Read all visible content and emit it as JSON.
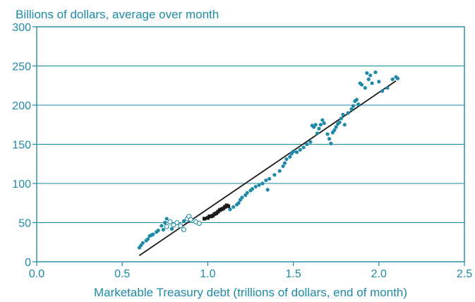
{
  "chart_data": {
    "type": "scatter",
    "title": "Billions of dollars, average over month",
    "xlabel": "Marketable Treasury debt (trillions of dollars, end of month)",
    "ylabel": "",
    "xlim": [
      0,
      2.5
    ],
    "ylim": [
      0,
      300
    ],
    "x_ticks": [
      "0.0",
      "0.5",
      "1.0",
      "1.5",
      "2.0",
      "2.5"
    ],
    "y_ticks": [
      "0",
      "50",
      "100",
      "150",
      "200",
      "250",
      "300"
    ],
    "grid": "horizontal",
    "colors": {
      "text": "#1e8aa6",
      "axis": "#1e8aa6",
      "grid": "#1e8aa6",
      "series_teal": "#1e8aa6",
      "series_black": "#1a1a1a",
      "fit_line": "#1a1a1a"
    },
    "series": [
      {
        "marker": "filled-circle",
        "color": "#1e8aa6",
        "points": [
          [
            0.6,
            18
          ],
          [
            0.61,
            21
          ],
          [
            0.62,
            24
          ],
          [
            0.64,
            27
          ],
          [
            0.65,
            29
          ],
          [
            0.66,
            33
          ],
          [
            0.67,
            34
          ],
          [
            0.68,
            35
          ],
          [
            0.7,
            38
          ],
          [
            0.71,
            40
          ],
          [
            0.73,
            46
          ],
          [
            0.74,
            41
          ],
          [
            0.75,
            50
          ],
          [
            0.76,
            55
          ],
          [
            0.79,
            42
          ],
          [
            0.86,
            52
          ],
          [
            1.13,
            67
          ],
          [
            1.15,
            70
          ],
          [
            1.17,
            73
          ],
          [
            1.18,
            75
          ],
          [
            1.19,
            79
          ],
          [
            1.2,
            82
          ],
          [
            1.22,
            85
          ],
          [
            1.23,
            88
          ],
          [
            1.25,
            91
          ],
          [
            1.26,
            93
          ],
          [
            1.28,
            96
          ],
          [
            1.3,
            98
          ],
          [
            1.32,
            100
          ],
          [
            1.34,
            104
          ],
          [
            1.35,
            92
          ],
          [
            1.36,
            106
          ],
          [
            1.39,
            111
          ],
          [
            1.42,
            116
          ],
          [
            1.44,
            122
          ],
          [
            1.45,
            126
          ],
          [
            1.46,
            131
          ],
          [
            1.48,
            134
          ],
          [
            1.49,
            138
          ],
          [
            1.5,
            141
          ],
          [
            1.52,
            140
          ],
          [
            1.54,
            143
          ],
          [
            1.56,
            146
          ],
          [
            1.58,
            150
          ],
          [
            1.6,
            153
          ],
          [
            1.61,
            174
          ],
          [
            1.62,
            172
          ],
          [
            1.63,
            175
          ],
          [
            1.64,
            164
          ],
          [
            1.65,
            170
          ],
          [
            1.66,
            175
          ],
          [
            1.67,
            181
          ],
          [
            1.68,
            177
          ],
          [
            1.7,
            163
          ],
          [
            1.71,
            157
          ],
          [
            1.72,
            151
          ],
          [
            1.73,
            165
          ],
          [
            1.74,
            168
          ],
          [
            1.75,
            172
          ],
          [
            1.76,
            176
          ],
          [
            1.77,
            178
          ],
          [
            1.78,
            183
          ],
          [
            1.79,
            188
          ],
          [
            1.8,
            175
          ],
          [
            1.82,
            190
          ],
          [
            1.84,
            195
          ],
          [
            1.85,
            199
          ],
          [
            1.86,
            205
          ],
          [
            1.87,
            207
          ],
          [
            1.88,
            201
          ],
          [
            1.89,
            228
          ],
          [
            1.9,
            226
          ],
          [
            1.92,
            222
          ],
          [
            1.93,
            241
          ],
          [
            1.94,
            233
          ],
          [
            1.95,
            238
          ],
          [
            1.96,
            228
          ],
          [
            1.98,
            242
          ],
          [
            2.0,
            230
          ],
          [
            2.02,
            218
          ],
          [
            2.05,
            222
          ],
          [
            2.08,
            233
          ],
          [
            2.1,
            236
          ],
          [
            2.11,
            234
          ]
        ]
      },
      {
        "marker": "open-circle",
        "color": "#1e8aa6",
        "points": [
          [
            0.76,
            45
          ],
          [
            0.78,
            51
          ],
          [
            0.8,
            47
          ],
          [
            0.82,
            50
          ],
          [
            0.84,
            46
          ],
          [
            0.86,
            41
          ],
          [
            0.88,
            55
          ],
          [
            0.89,
            58
          ],
          [
            0.9,
            54
          ],
          [
            0.93,
            51
          ],
          [
            0.95,
            49
          ]
        ]
      },
      {
        "marker": "filled-square",
        "color": "#1a1a1a",
        "points": [
          [
            0.98,
            55
          ],
          [
            1.0,
            56
          ],
          [
            1.01,
            58
          ],
          [
            1.02,
            58
          ],
          [
            1.03,
            59
          ],
          [
            1.04,
            61
          ],
          [
            1.05,
            62
          ],
          [
            1.06,
            64
          ],
          [
            1.07,
            66
          ],
          [
            1.08,
            67
          ],
          [
            1.09,
            68
          ],
          [
            1.1,
            70
          ],
          [
            1.11,
            72
          ],
          [
            1.12,
            71
          ]
        ]
      }
    ],
    "fit_line": [
      [
        0.6,
        8
      ],
      [
        2.1,
        231
      ]
    ]
  }
}
